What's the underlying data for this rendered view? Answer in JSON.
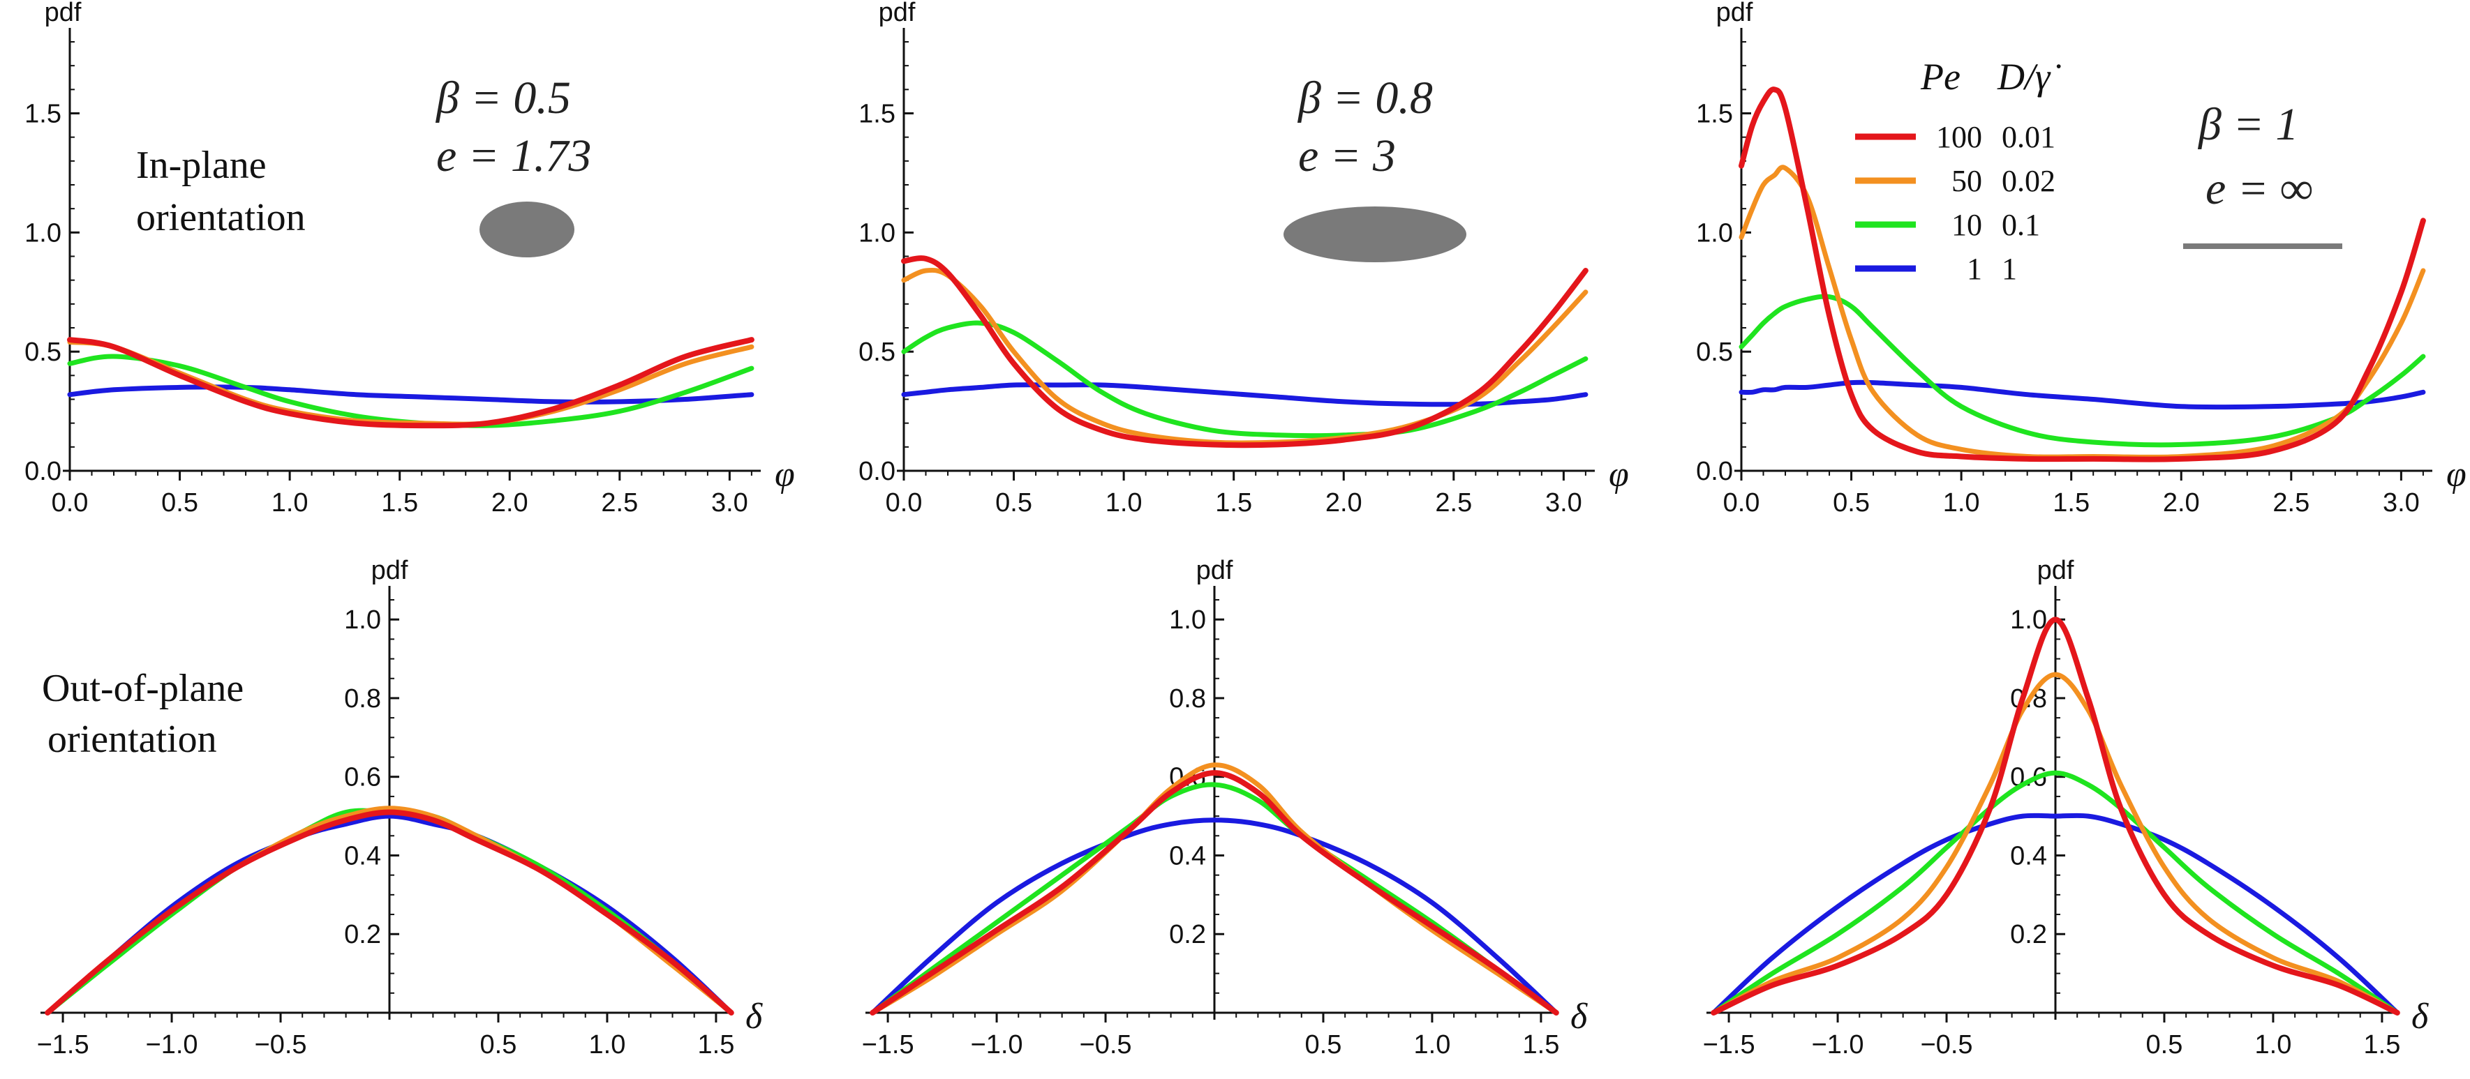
{
  "colors": {
    "red": "#e4161b",
    "orange": "#f39020",
    "green": "#1fe41f",
    "blue": "#1a1ae0",
    "shape": "#7a7a7a",
    "axis": "#111111"
  },
  "labels": {
    "pdf": "pdf",
    "phi": "φ",
    "delta": "δ",
    "in_plane_1": "In-plane",
    "in_plane_2": "orientation",
    "out_plane_1": "Out-of-plane",
    "out_plane_2": "orientation"
  },
  "legend": {
    "head_pe": "Pe",
    "head_d": "D/γ̇",
    "rows": [
      {
        "color": "#e4161b",
        "pe": "100",
        "d": "0.01"
      },
      {
        "color": "#f39020",
        "pe": "50",
        "d": "0.02"
      },
      {
        "color": "#1fe41f",
        "pe": "10",
        "d": "0.1"
      },
      {
        "color": "#1a1ae0",
        "pe": "1",
        "d": "1"
      }
    ]
  },
  "annotations": [
    {
      "beta_label": "β = 0.5",
      "e_label": "e = 1.73",
      "shape": "ellipse-small"
    },
    {
      "beta_label": "β = 0.8",
      "e_label": "e = 3",
      "shape": "ellipse-long"
    },
    {
      "beta_label": "β = 1",
      "e_label": "e = ∞",
      "shape": "line"
    }
  ],
  "chart_data": [
    {
      "type": "line",
      "row": "top",
      "col": 0,
      "xlabel": "φ",
      "ylabel": "pdf",
      "xlim": [
        0,
        3.14159
      ],
      "ylim": [
        0,
        1.8
      ],
      "xticks": [
        "0.0",
        "0.5",
        "1.0",
        "1.5",
        "2.0",
        "2.5",
        "3.0"
      ],
      "xtick_values": [
        0,
        0.5,
        1,
        1.5,
        2,
        2.5,
        3
      ],
      "yticks": [
        "0.0",
        "0.5",
        "1.0",
        "1.5"
      ],
      "ytick_values": [
        0,
        0.5,
        1,
        1.5
      ],
      "x": [
        0,
        0.2,
        0.5,
        0.8,
        1.0,
        1.3,
        1.6,
        1.9,
        2.2,
        2.5,
        2.8,
        3.1
      ],
      "series": [
        {
          "name": "Pe=100",
          "color": "#e4161b",
          "values": [
            0.55,
            0.52,
            0.4,
            0.29,
            0.24,
            0.2,
            0.19,
            0.2,
            0.26,
            0.36,
            0.48,
            0.55
          ]
        },
        {
          "name": "Pe=50",
          "color": "#f39020",
          "values": [
            0.54,
            0.52,
            0.41,
            0.3,
            0.25,
            0.21,
            0.2,
            0.2,
            0.25,
            0.34,
            0.45,
            0.52
          ]
        },
        {
          "name": "Pe=10",
          "color": "#1fe41f",
          "values": [
            0.45,
            0.48,
            0.44,
            0.35,
            0.29,
            0.23,
            0.2,
            0.19,
            0.21,
            0.25,
            0.33,
            0.43
          ]
        },
        {
          "name": "Pe=1",
          "color": "#1a1ae0",
          "values": [
            0.32,
            0.34,
            0.35,
            0.35,
            0.34,
            0.32,
            0.31,
            0.3,
            0.29,
            0.29,
            0.3,
            0.32
          ]
        }
      ]
    },
    {
      "type": "line",
      "row": "top",
      "col": 1,
      "xlabel": "φ",
      "ylabel": "pdf",
      "xlim": [
        0,
        3.14159
      ],
      "ylim": [
        0,
        1.8
      ],
      "xticks": [
        "0.0",
        "0.5",
        "1.0",
        "1.5",
        "2.0",
        "2.5",
        "3.0"
      ],
      "xtick_values": [
        0,
        0.5,
        1,
        1.5,
        2,
        2.5,
        3
      ],
      "yticks": [
        "0.0",
        "0.5",
        "1.0",
        "1.5"
      ],
      "ytick_values": [
        0,
        0.5,
        1,
        1.5
      ],
      "x": [
        0,
        0.1,
        0.2,
        0.35,
        0.5,
        0.7,
        0.9,
        1.1,
        1.4,
        1.7,
        2.0,
        2.3,
        2.6,
        2.8,
        2.95,
        3.1
      ],
      "series": [
        {
          "name": "Pe=100",
          "color": "#e4161b",
          "values": [
            0.88,
            0.89,
            0.83,
            0.65,
            0.45,
            0.26,
            0.17,
            0.13,
            0.11,
            0.11,
            0.13,
            0.18,
            0.32,
            0.5,
            0.66,
            0.84
          ]
        },
        {
          "name": "Pe=50",
          "color": "#f39020",
          "values": [
            0.8,
            0.84,
            0.82,
            0.69,
            0.5,
            0.3,
            0.2,
            0.15,
            0.12,
            0.12,
            0.14,
            0.19,
            0.3,
            0.46,
            0.6,
            0.75
          ]
        },
        {
          "name": "Pe=10",
          "color": "#1fe41f",
          "values": [
            0.5,
            0.56,
            0.6,
            0.62,
            0.58,
            0.46,
            0.33,
            0.24,
            0.17,
            0.15,
            0.15,
            0.17,
            0.25,
            0.33,
            0.4,
            0.47
          ]
        },
        {
          "name": "Pe=1",
          "color": "#1a1ae0",
          "values": [
            0.32,
            0.33,
            0.34,
            0.35,
            0.36,
            0.36,
            0.36,
            0.35,
            0.33,
            0.31,
            0.29,
            0.28,
            0.28,
            0.29,
            0.3,
            0.32
          ]
        }
      ]
    },
    {
      "type": "line",
      "row": "top",
      "col": 2,
      "xlabel": "φ",
      "ylabel": "pdf",
      "xlim": [
        0,
        3.14159
      ],
      "ylim": [
        0,
        1.8
      ],
      "xticks": [
        "0.0",
        "0.5",
        "1.0",
        "1.5",
        "2.0",
        "2.5",
        "3.0"
      ],
      "xtick_values": [
        0,
        0.5,
        1,
        1.5,
        2,
        2.5,
        3
      ],
      "yticks": [
        "0.0",
        "0.5",
        "1.0",
        "1.5"
      ],
      "ytick_values": [
        0,
        0.5,
        1,
        1.5
      ],
      "x": [
        0,
        0.05,
        0.1,
        0.15,
        0.2,
        0.3,
        0.4,
        0.5,
        0.6,
        0.8,
        1.0,
        1.3,
        1.6,
        2.0,
        2.4,
        2.7,
        2.85,
        3.0,
        3.1
      ],
      "series": [
        {
          "name": "Pe=100",
          "color": "#e4161b",
          "values": [
            1.28,
            1.45,
            1.55,
            1.6,
            1.52,
            1.1,
            0.65,
            0.32,
            0.17,
            0.08,
            0.06,
            0.05,
            0.05,
            0.05,
            0.08,
            0.2,
            0.42,
            0.75,
            1.05
          ]
        },
        {
          "name": "Pe=50",
          "color": "#f39020",
          "values": [
            0.98,
            1.1,
            1.2,
            1.24,
            1.27,
            1.15,
            0.85,
            0.55,
            0.33,
            0.15,
            0.09,
            0.06,
            0.06,
            0.06,
            0.1,
            0.22,
            0.38,
            0.62,
            0.84
          ]
        },
        {
          "name": "Pe=10",
          "color": "#1fe41f",
          "values": [
            0.52,
            0.57,
            0.62,
            0.66,
            0.69,
            0.72,
            0.73,
            0.69,
            0.6,
            0.42,
            0.27,
            0.16,
            0.12,
            0.11,
            0.14,
            0.22,
            0.3,
            0.4,
            0.48
          ]
        },
        {
          "name": "Pe=1",
          "color": "#1a1ae0",
          "values": [
            0.33,
            0.33,
            0.34,
            0.34,
            0.35,
            0.35,
            0.36,
            0.37,
            0.37,
            0.36,
            0.35,
            0.32,
            0.3,
            0.27,
            0.27,
            0.28,
            0.29,
            0.31,
            0.33
          ]
        }
      ]
    },
    {
      "type": "line",
      "row": "bottom",
      "col": 0,
      "xlabel": "δ",
      "ylabel": "pdf",
      "xlim": [
        -1.5708,
        1.5708
      ],
      "ylim": [
        0,
        1.05
      ],
      "xticks": [
        "-1.5",
        "-1.0",
        "-0.5",
        "0.5",
        "1.0",
        "1.5"
      ],
      "xtick_values": [
        -1.5,
        -1,
        -0.5,
        0.5,
        1,
        1.5
      ],
      "yticks": [
        "0.2",
        "0.4",
        "0.6",
        "0.8",
        "1.0"
      ],
      "ytick_values": [
        0.2,
        0.4,
        0.6,
        0.8,
        1.0
      ],
      "x": [
        -1.57,
        -1.3,
        -1.0,
        -0.7,
        -0.4,
        -0.2,
        0,
        0.2,
        0.4,
        0.7,
        1.0,
        1.3,
        1.57
      ],
      "series": [
        {
          "name": "Pe=100",
          "color": "#e4161b",
          "values": [
            0.0,
            0.13,
            0.26,
            0.37,
            0.45,
            0.49,
            0.51,
            0.49,
            0.44,
            0.36,
            0.25,
            0.13,
            0.0
          ]
        },
        {
          "name": "Pe=50",
          "color": "#f39020",
          "values": [
            0.0,
            0.13,
            0.26,
            0.37,
            0.46,
            0.5,
            0.52,
            0.5,
            0.45,
            0.36,
            0.25,
            0.12,
            0.0
          ]
        },
        {
          "name": "Pe=10",
          "color": "#1fe41f",
          "values": [
            0.0,
            0.12,
            0.25,
            0.37,
            0.46,
            0.51,
            0.51,
            0.5,
            0.45,
            0.37,
            0.26,
            0.13,
            0.0
          ]
        },
        {
          "name": "Pe=1",
          "color": "#1a1ae0",
          "values": [
            0.0,
            0.13,
            0.27,
            0.38,
            0.45,
            0.48,
            0.5,
            0.48,
            0.45,
            0.37,
            0.27,
            0.14,
            0.0
          ]
        }
      ]
    },
    {
      "type": "line",
      "row": "bottom",
      "col": 1,
      "xlabel": "δ",
      "ylabel": "pdf",
      "xlim": [
        -1.5708,
        1.5708
      ],
      "ylim": [
        0,
        1.05
      ],
      "xticks": [
        "-1.5",
        "-1.0",
        "-0.5",
        "0.5",
        "1.0",
        "1.5"
      ],
      "xtick_values": [
        -1.5,
        -1,
        -0.5,
        0.5,
        1,
        1.5
      ],
      "yticks": [
        "0.2",
        "0.4",
        "0.6",
        "0.8",
        "1.0"
      ],
      "ytick_values": [
        0.2,
        0.4,
        0.6,
        0.8,
        1.0
      ],
      "x": [
        -1.57,
        -1.3,
        -1.0,
        -0.7,
        -0.4,
        -0.2,
        0,
        0.2,
        0.4,
        0.7,
        1.0,
        1.3,
        1.57
      ],
      "series": [
        {
          "name": "Pe=100",
          "color": "#e4161b",
          "values": [
            0.0,
            0.1,
            0.21,
            0.32,
            0.46,
            0.56,
            0.61,
            0.56,
            0.45,
            0.33,
            0.22,
            0.11,
            0.0
          ]
        },
        {
          "name": "Pe=50",
          "color": "#f39020",
          "values": [
            0.0,
            0.09,
            0.2,
            0.31,
            0.46,
            0.57,
            0.63,
            0.58,
            0.46,
            0.33,
            0.21,
            0.1,
            0.0
          ]
        },
        {
          "name": "Pe=10",
          "color": "#1fe41f",
          "values": [
            0.0,
            0.11,
            0.23,
            0.35,
            0.47,
            0.55,
            0.58,
            0.54,
            0.45,
            0.34,
            0.23,
            0.11,
            0.0
          ]
        },
        {
          "name": "Pe=1",
          "color": "#1a1ae0",
          "values": [
            0.0,
            0.14,
            0.28,
            0.38,
            0.45,
            0.48,
            0.49,
            0.48,
            0.45,
            0.38,
            0.28,
            0.14,
            0.0
          ]
        }
      ]
    },
    {
      "type": "line",
      "row": "bottom",
      "col": 2,
      "xlabel": "δ",
      "ylabel": "pdf",
      "xlim": [
        -1.5708,
        1.5708
      ],
      "ylim": [
        0,
        1.05
      ],
      "xticks": [
        "-1.5",
        "-1.0",
        "-0.5",
        "0.5",
        "1.0",
        "1.5"
      ],
      "xtick_values": [
        -1.5,
        -1,
        -0.5,
        0.5,
        1,
        1.5
      ],
      "yticks": [
        "0.2",
        "0.4",
        "0.6",
        "0.8",
        "1.0"
      ],
      "ytick_values": [
        0.2,
        0.4,
        0.6,
        0.8,
        1.0
      ],
      "x": [
        -1.57,
        -1.3,
        -1.0,
        -0.7,
        -0.5,
        -0.3,
        -0.15,
        0,
        0.15,
        0.3,
        0.5,
        0.7,
        1.0,
        1.3,
        1.57
      ],
      "series": [
        {
          "name": "Pe=100",
          "color": "#e4161b",
          "values": [
            0.0,
            0.07,
            0.12,
            0.2,
            0.3,
            0.52,
            0.8,
            1.0,
            0.8,
            0.52,
            0.3,
            0.2,
            0.12,
            0.07,
            0.0
          ]
        },
        {
          "name": "Pe=50",
          "color": "#f39020",
          "values": [
            0.0,
            0.08,
            0.14,
            0.24,
            0.37,
            0.58,
            0.77,
            0.86,
            0.77,
            0.58,
            0.37,
            0.24,
            0.14,
            0.08,
            0.0
          ]
        },
        {
          "name": "Pe=10",
          "color": "#1fe41f",
          "values": [
            0.0,
            0.1,
            0.2,
            0.32,
            0.42,
            0.52,
            0.58,
            0.61,
            0.58,
            0.52,
            0.42,
            0.32,
            0.2,
            0.1,
            0.0
          ]
        },
        {
          "name": "Pe=1",
          "color": "#1a1ae0",
          "values": [
            0.0,
            0.14,
            0.27,
            0.38,
            0.44,
            0.48,
            0.5,
            0.5,
            0.5,
            0.48,
            0.44,
            0.38,
            0.27,
            0.14,
            0.0
          ]
        }
      ]
    }
  ]
}
